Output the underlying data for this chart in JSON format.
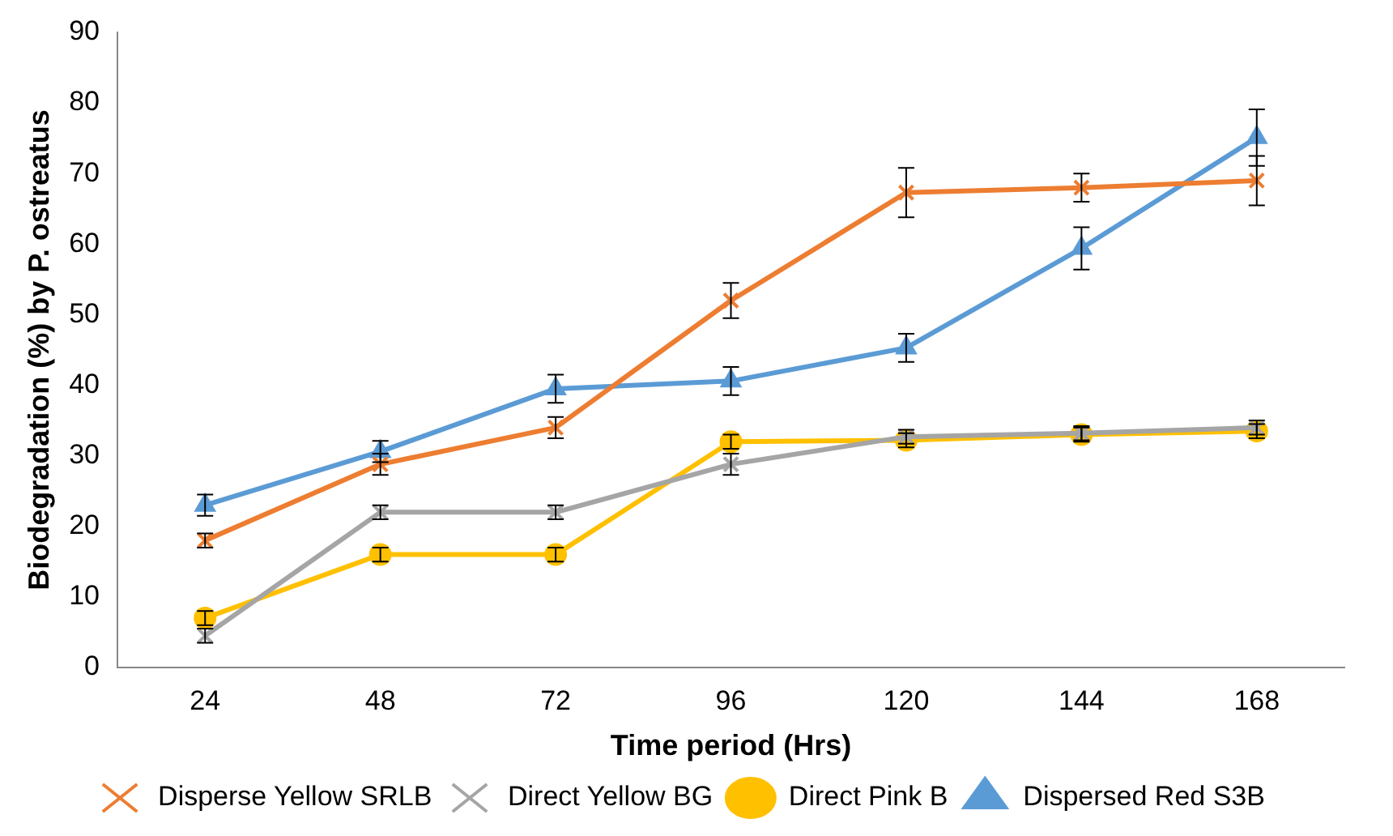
{
  "chart_data": {
    "type": "line",
    "xlabel": "Time period (Hrs)",
    "ylabel": "Biodegradation (%) by P. ostreatus",
    "categories": [
      "24",
      "48",
      "72",
      "96",
      "120",
      "144",
      "168"
    ],
    "ylim": [
      0,
      90
    ],
    "yticks": [
      0,
      10,
      20,
      30,
      40,
      50,
      60,
      70,
      80,
      90
    ],
    "grid": false,
    "legend": "bottom",
    "line_style": "solid",
    "series": [
      {
        "name": "Disperse Yellow SRLB",
        "color": "#ed7d31",
        "marker": "cross",
        "values": [
          18,
          28.8,
          34,
          52,
          67.3,
          68,
          69
        ],
        "errors": [
          1,
          1.5,
          1.5,
          2.5,
          3.5,
          2,
          3.5
        ]
      },
      {
        "name": "Direct Yellow BG",
        "color": "#a5a5a5",
        "marker": "cross",
        "values": [
          4.5,
          22,
          22,
          28.8,
          32.7,
          33.2,
          34
        ],
        "errors": [
          1,
          1,
          1,
          1.5,
          1,
          1,
          1
        ]
      },
      {
        "name": "Direct Pink B",
        "color": "#ffc000",
        "marker": "circle",
        "values": [
          7,
          16,
          16,
          32,
          32.2,
          33,
          33.5
        ],
        "errors": [
          1,
          1,
          1,
          1,
          1,
          1,
          1
        ]
      },
      {
        "name": "Dispersed Red S3B",
        "color": "#5b9bd5",
        "marker": "triangle",
        "values": [
          23,
          30.6,
          39.5,
          40.6,
          45.3,
          59.4,
          75.1
        ],
        "errors": [
          1.5,
          1.5,
          2,
          2,
          2,
          3,
          4
        ]
      }
    ]
  }
}
